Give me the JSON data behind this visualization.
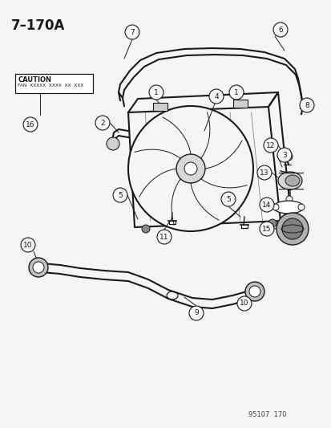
{
  "title": "7–170A",
  "bg_color": "#f5f5f5",
  "line_color": "#1a1a1a",
  "caution_text": "CAUTION",
  "caution_sub": "FAN XXXXX XXXX XX XXX",
  "watermark": "95107  170",
  "fig_w": 4.14,
  "fig_h": 5.33,
  "dpi": 100
}
